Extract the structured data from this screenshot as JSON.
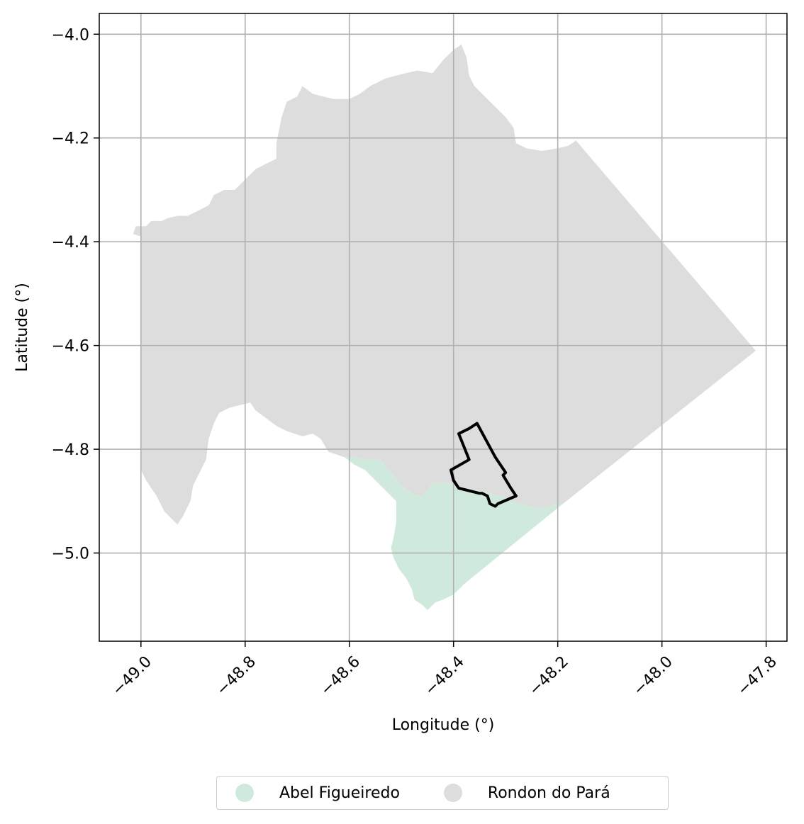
{
  "chart_data": {
    "type": "map",
    "xlabel": "Longitude (°)",
    "ylabel": "Latitude (°)",
    "xlim": [
      -49.08,
      -47.76
    ],
    "ylim": [
      -5.17,
      -3.96
    ],
    "xticks": [
      -49.0,
      -48.8,
      -48.6,
      -48.4,
      -48.2,
      -48.0,
      -47.8
    ],
    "xtick_labels": [
      "−49.0",
      "−48.8",
      "−48.6",
      "−48.4",
      "−48.2",
      "−48.0",
      "−47.8"
    ],
    "yticks": [
      -4.0,
      -4.2,
      -4.4,
      -4.6,
      -4.8,
      -5.0
    ],
    "ytick_labels": [
      "−4.0",
      "−4.2",
      "−4.4",
      "−4.6",
      "−4.8",
      "−5.0"
    ],
    "grid": true,
    "legend_position": "bottom-center",
    "regions": [
      {
        "name": "Rondon do Pará",
        "color": "#dddddd",
        "polygon": [
          [
            -49.01,
            -4.37
          ],
          [
            -48.99,
            -4.37
          ],
          [
            -48.98,
            -4.36
          ],
          [
            -48.96,
            -4.36
          ],
          [
            -48.95,
            -4.355
          ],
          [
            -48.93,
            -4.35
          ],
          [
            -48.91,
            -4.35
          ],
          [
            -48.89,
            -4.34
          ],
          [
            -48.87,
            -4.33
          ],
          [
            -48.86,
            -4.31
          ],
          [
            -48.84,
            -4.3
          ],
          [
            -48.82,
            -4.3
          ],
          [
            -48.8,
            -4.28
          ],
          [
            -48.78,
            -4.26
          ],
          [
            -48.76,
            -4.25
          ],
          [
            -48.74,
            -4.24
          ],
          [
            -48.74,
            -4.21
          ],
          [
            -48.73,
            -4.16
          ],
          [
            -48.72,
            -4.13
          ],
          [
            -48.7,
            -4.12
          ],
          [
            -48.69,
            -4.1
          ],
          [
            -48.67,
            -4.115
          ],
          [
            -48.65,
            -4.12
          ],
          [
            -48.63,
            -4.125
          ],
          [
            -48.6,
            -4.125
          ],
          [
            -48.58,
            -4.115
          ],
          [
            -48.56,
            -4.1
          ],
          [
            -48.53,
            -4.085
          ],
          [
            -48.5,
            -4.077
          ],
          [
            -48.47,
            -4.07
          ],
          [
            -48.44,
            -4.075
          ],
          [
            -48.42,
            -4.05
          ],
          [
            -48.4,
            -4.03
          ],
          [
            -48.385,
            -4.02
          ],
          [
            -48.375,
            -4.045
          ],
          [
            -48.37,
            -4.08
          ],
          [
            -48.36,
            -4.1
          ],
          [
            -48.34,
            -4.12
          ],
          [
            -48.32,
            -4.14
          ],
          [
            -48.3,
            -4.16
          ],
          [
            -48.285,
            -4.18
          ],
          [
            -48.28,
            -4.21
          ],
          [
            -48.26,
            -4.22
          ],
          [
            -48.23,
            -4.225
          ],
          [
            -48.2,
            -4.22
          ],
          [
            -48.18,
            -4.215
          ],
          [
            -48.165,
            -4.205
          ],
          [
            -47.82,
            -4.61
          ],
          [
            -48.19,
            -4.905
          ],
          [
            -48.2,
            -4.905
          ],
          [
            -48.23,
            -4.915
          ],
          [
            -48.27,
            -4.905
          ],
          [
            -48.31,
            -4.89
          ],
          [
            -48.35,
            -4.88
          ],
          [
            -48.38,
            -4.875
          ],
          [
            -48.41,
            -4.865
          ],
          [
            -48.44,
            -4.865
          ],
          [
            -48.46,
            -4.89
          ],
          [
            -48.48,
            -4.885
          ],
          [
            -48.5,
            -4.87
          ],
          [
            -48.52,
            -4.845
          ],
          [
            -48.54,
            -4.82
          ],
          [
            -48.57,
            -4.82
          ],
          [
            -48.59,
            -4.815
          ],
          [
            -48.61,
            -4.815
          ],
          [
            -48.64,
            -4.805
          ],
          [
            -48.655,
            -4.78
          ],
          [
            -48.67,
            -4.77
          ],
          [
            -48.69,
            -4.775
          ],
          [
            -48.72,
            -4.765
          ],
          [
            -48.74,
            -4.755
          ],
          [
            -48.76,
            -4.74
          ],
          [
            -48.78,
            -4.725
          ],
          [
            -48.79,
            -4.71
          ],
          [
            -48.81,
            -4.715
          ],
          [
            -48.83,
            -4.72
          ],
          [
            -48.85,
            -4.73
          ],
          [
            -48.86,
            -4.75
          ],
          [
            -48.87,
            -4.78
          ],
          [
            -48.875,
            -4.82
          ],
          [
            -48.885,
            -4.84
          ],
          [
            -48.9,
            -4.87
          ],
          [
            -48.905,
            -4.9
          ],
          [
            -48.92,
            -4.93
          ],
          [
            -48.93,
            -4.945
          ],
          [
            -48.955,
            -4.92
          ],
          [
            -48.97,
            -4.89
          ],
          [
            -48.99,
            -4.86
          ],
          [
            -49.0,
            -4.84
          ],
          [
            -49.0,
            -4.39
          ],
          [
            -49.015,
            -4.385
          ]
        ]
      },
      {
        "name": "Abel Figueiredo",
        "color": "#cfeadc",
        "polygon": [
          [
            -48.61,
            -4.815
          ],
          [
            -48.59,
            -4.815
          ],
          [
            -48.57,
            -4.82
          ],
          [
            -48.54,
            -4.82
          ],
          [
            -48.52,
            -4.845
          ],
          [
            -48.5,
            -4.87
          ],
          [
            -48.48,
            -4.885
          ],
          [
            -48.46,
            -4.89
          ],
          [
            -48.44,
            -4.865
          ],
          [
            -48.41,
            -4.865
          ],
          [
            -48.38,
            -4.875
          ],
          [
            -48.35,
            -4.88
          ],
          [
            -48.31,
            -4.89
          ],
          [
            -48.27,
            -4.905
          ],
          [
            -48.23,
            -4.915
          ],
          [
            -48.2,
            -4.905
          ],
          [
            -48.19,
            -4.905
          ],
          [
            -48.38,
            -5.06
          ],
          [
            -48.4,
            -5.08
          ],
          [
            -48.42,
            -5.09
          ],
          [
            -48.435,
            -5.095
          ],
          [
            -48.45,
            -5.11
          ],
          [
            -48.46,
            -5.1
          ],
          [
            -48.475,
            -5.09
          ],
          [
            -48.48,
            -5.07
          ],
          [
            -48.49,
            -5.05
          ],
          [
            -48.505,
            -5.03
          ],
          [
            -48.515,
            -5.01
          ],
          [
            -48.52,
            -4.99
          ],
          [
            -48.515,
            -4.97
          ],
          [
            -48.51,
            -4.94
          ],
          [
            -48.51,
            -4.9
          ],
          [
            -48.52,
            -4.89
          ],
          [
            -48.535,
            -4.875
          ],
          [
            -48.55,
            -4.86
          ],
          [
            -48.57,
            -4.84
          ],
          [
            -48.59,
            -4.83
          ]
        ]
      }
    ],
    "outline": {
      "color": "#000000",
      "polygon": [
        [
          -48.355,
          -4.75
        ],
        [
          -48.32,
          -4.815
        ],
        [
          -48.3,
          -4.845
        ],
        [
          -48.305,
          -4.85
        ],
        [
          -48.29,
          -4.875
        ],
        [
          -48.28,
          -4.89
        ],
        [
          -48.315,
          -4.905
        ],
        [
          -48.32,
          -4.91
        ],
        [
          -48.33,
          -4.905
        ],
        [
          -48.335,
          -4.89
        ],
        [
          -48.345,
          -4.885
        ],
        [
          -48.35,
          -4.885
        ],
        [
          -48.39,
          -4.875
        ],
        [
          -48.4,
          -4.86
        ],
        [
          -48.405,
          -4.84
        ],
        [
          -48.37,
          -4.82
        ],
        [
          -48.39,
          -4.77
        ],
        [
          -48.37,
          -4.76
        ]
      ]
    }
  }
}
